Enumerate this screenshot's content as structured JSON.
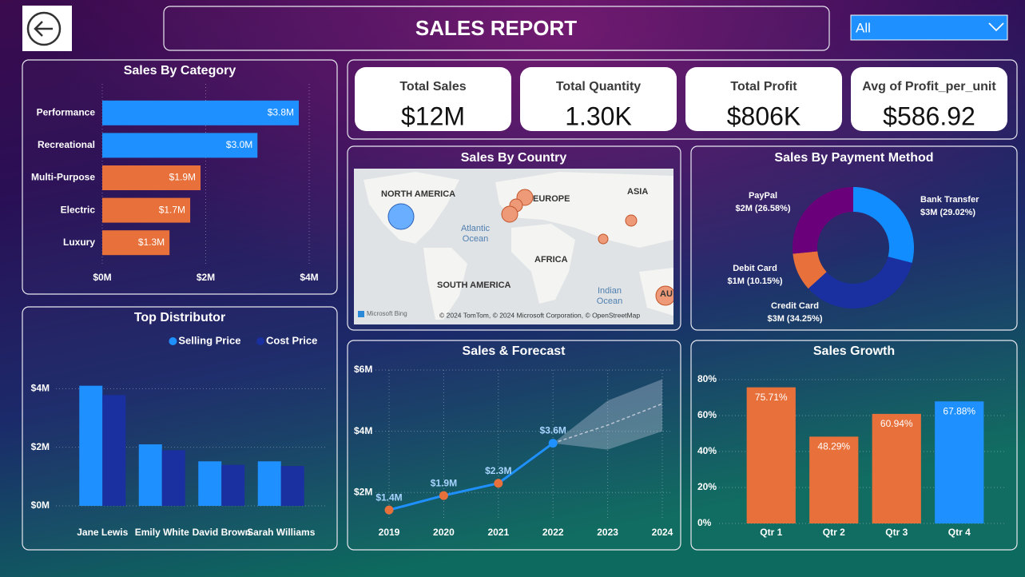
{
  "header": {
    "title": "SALES REPORT",
    "filter": "All"
  },
  "kpis": [
    {
      "label": "Total Sales",
      "value": "$12M"
    },
    {
      "label": "Total Quantity",
      "value": "1.30K"
    },
    {
      "label": "Total Profit",
      "value": "$806K"
    },
    {
      "label": "Avg of Profit_per_unit",
      "value": "$586.92"
    }
  ],
  "map": {
    "title": "Sales By Country",
    "labels": [
      "NORTH AMERICA",
      "EUROPE",
      "ASIA",
      "AFRICA",
      "SOUTH AMERICA",
      "AU"
    ],
    "oceans": [
      [
        "Atlantic",
        "Ocean"
      ],
      [
        "Indian",
        "Ocean"
      ]
    ],
    "attribution": "© 2024 TomTom, © 2024 Microsoft Corporation, © OpenStreetMap",
    "provider": "Microsoft Bing"
  },
  "chart_data": [
    {
      "type": "hbar",
      "title": "Sales By Category",
      "categories": [
        "Performance",
        "Recreational",
        "Multi-Purpose",
        "Electric",
        "Luxury"
      ],
      "values": [
        3800000,
        3000000,
        1900000,
        1700000,
        1300000
      ],
      "value_labels": [
        "$3.8M",
        "$3.0M",
        "$1.9M",
        "$1.7M",
        "$1.3M"
      ],
      "colors": [
        "#1e90ff",
        "#1e90ff",
        "#e8703a",
        "#e8703a",
        "#e8703a"
      ],
      "xlim": [
        0,
        4000000
      ],
      "xticks": [
        {
          "value": 0,
          "label": "$0M"
        },
        {
          "value": 2000000,
          "label": "$2M"
        },
        {
          "value": 4000000,
          "label": "$4M"
        }
      ],
      "grid": true
    },
    {
      "type": "bar",
      "title": "Top Distributor",
      "categories": [
        "Jane Lewis",
        "Emily White",
        "David Brown",
        "Sarah Williams"
      ],
      "series": [
        {
          "name": "Selling Price",
          "color": "#1e90ff",
          "values": [
            4100000,
            2100000,
            1520000,
            1520000
          ]
        },
        {
          "name": "Cost Price",
          "color": "#1a2fa0",
          "values": [
            3780000,
            1900000,
            1400000,
            1360000
          ]
        }
      ],
      "ylim": [
        0,
        4500000
      ],
      "yticks": [
        {
          "value": 0,
          "label": "$0M"
        },
        {
          "value": 2000000,
          "label": "$2M"
        },
        {
          "value": 4000000,
          "label": "$4M"
        }
      ],
      "grid": true,
      "legend": "top-right"
    },
    {
      "type": "line",
      "title": "Sales & Forecast",
      "x": [
        2019,
        2020,
        2021,
        2022,
        2023,
        2024
      ],
      "values": [
        1430000,
        1900000,
        2300000,
        3610000,
        null,
        null
      ],
      "value_labels": [
        "$1.4M",
        "$1.9M",
        "$2.3M",
        "$3.6M",
        null,
        null
      ],
      "point_colors": [
        "#e8703a",
        "#e8703a",
        "#e8703a",
        "#1e90ff",
        null,
        null
      ],
      "color": "#1e90ff",
      "forecast": {
        "values": [
          null,
          null,
          null,
          3610000,
          4200000,
          4900000
        ],
        "upper": [
          null,
          null,
          null,
          3610000,
          5000000,
          5700000
        ],
        "lower": [
          null,
          null,
          null,
          3610000,
          3400000,
          4000000
        ]
      },
      "xlim": [
        2019,
        2024
      ],
      "xticks": [
        2019,
        2020,
        2021,
        2022,
        2023,
        2024
      ],
      "ylim": [
        1250000,
        6000000
      ],
      "yticks": [
        {
          "value": 2000000,
          "label": "$2M"
        },
        {
          "value": 4000000,
          "label": "$4M"
        },
        {
          "value": 6000000,
          "label": "$6M"
        }
      ],
      "grid": true
    },
    {
      "type": "bar",
      "title": "Sales Growth",
      "categories": [
        "Qtr 1",
        "Qtr 2",
        "Qtr 3",
        "Qtr 4"
      ],
      "values": [
        75.71,
        48.29,
        60.94,
        67.88
      ],
      "value_labels": [
        "75.71%",
        "48.29%",
        "60.94%",
        "67.88%"
      ],
      "colors": [
        "#e8703a",
        "#e8703a",
        "#e8703a",
        "#1e90ff"
      ],
      "ylim": [
        0,
        80
      ],
      "yticks": [
        {
          "value": 0,
          "label": "0%"
        },
        {
          "value": 20,
          "label": "20%"
        },
        {
          "value": 40,
          "label": "40%"
        },
        {
          "value": 60,
          "label": "60%"
        },
        {
          "value": 80,
          "label": "80%"
        }
      ],
      "grid": true
    },
    {
      "type": "pie",
      "title": "Sales By Payment Method",
      "hole": true,
      "categories": [
        "Bank Transfer",
        "Credit Card",
        "Debit Card",
        "PayPal"
      ],
      "values": [
        29.02,
        34.25,
        10.15,
        26.58
      ],
      "value_labels": [
        "$3M (29.02%)",
        "$3M (34.25%)",
        "$1M (10.15%)",
        "$2M (26.58%)"
      ],
      "colors": [
        "#118dff",
        "#1a2fa0",
        "#e8703a",
        "#6b007b"
      ]
    }
  ]
}
